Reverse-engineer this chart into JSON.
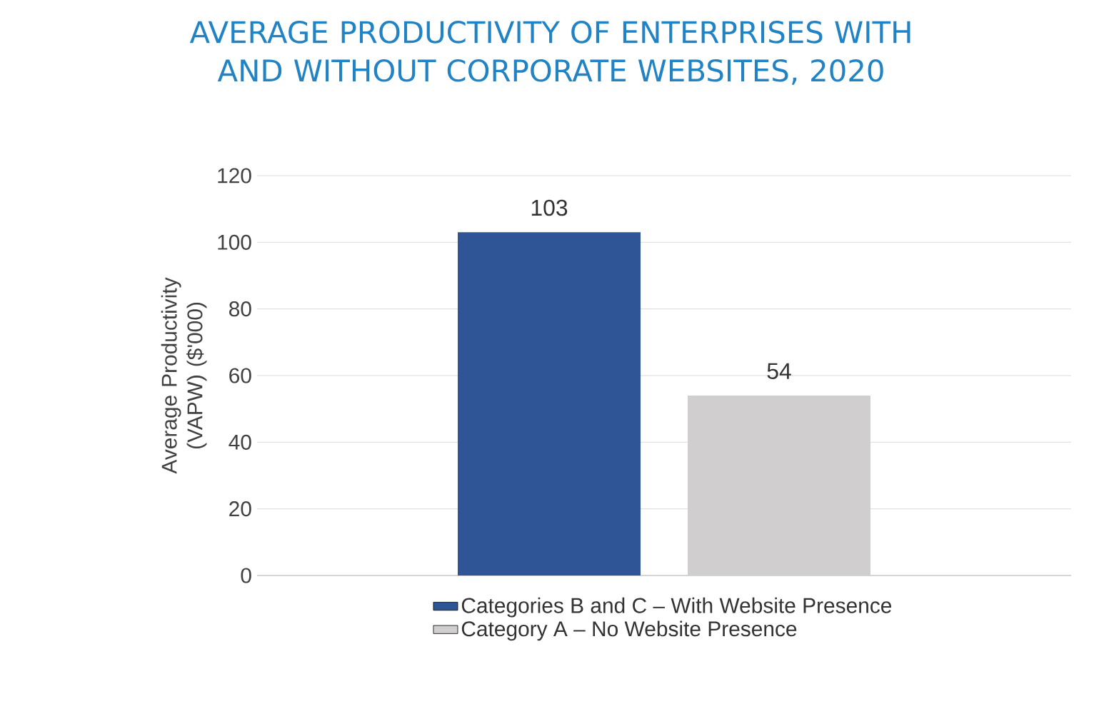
{
  "chart_data": {
    "type": "bar",
    "title": "AVERAGE PRODUCTIVITY OF ENTERPRISES WITH AND WITHOUT CORPORATE WEBSITES, 2020",
    "ylabel": "Average Productivity (VAPW) ($'000)",
    "categories": [
      null
    ],
    "series": [
      {
        "name": "Categories B and C – With Website Presence",
        "color": "#2f5597",
        "values": [
          103
        ]
      },
      {
        "name": "Category A – No Website Presence",
        "color": "#d0cece",
        "values": [
          54
        ]
      }
    ],
    "ylim": [
      0,
      120
    ],
    "yticks": [
      0,
      20,
      40,
      60,
      80,
      100,
      120
    ],
    "grid": "y",
    "legend": "bottom",
    "data_labels": true
  }
}
